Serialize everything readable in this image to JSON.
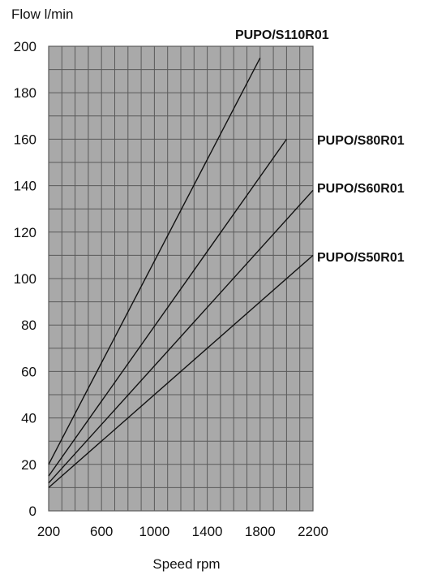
{
  "colors": {
    "plot_background": "#a9a9a9",
    "grid_line": "#5a5a5a",
    "series_line": "#111111",
    "text": "#111111"
  },
  "chart_data": {
    "type": "line",
    "title": "",
    "xlabel": "Speed rpm",
    "ylabel": "Flow l/min",
    "xlim": [
      200,
      2200
    ],
    "ylim": [
      0,
      200
    ],
    "x_ticks": [
      200,
      600,
      1000,
      1400,
      1800,
      2200
    ],
    "y_ticks": [
      0,
      20,
      40,
      60,
      80,
      100,
      120,
      140,
      160,
      180,
      200
    ],
    "grid": true,
    "grid_x_step": 100,
    "grid_y_step": 10,
    "series": [
      {
        "name": "PUPO/S110R01",
        "x": [
          200,
          1800
        ],
        "y": [
          20,
          195
        ]
      },
      {
        "name": "PUPO/S80R01",
        "x": [
          200,
          2000
        ],
        "y": [
          15,
          160
        ]
      },
      {
        "name": "PUPO/S60R01",
        "x": [
          200,
          2200
        ],
        "y": [
          12,
          138
        ]
      },
      {
        "name": "PUPO/S50R01",
        "x": [
          200,
          2200
        ],
        "y": [
          10,
          110
        ]
      }
    ]
  }
}
